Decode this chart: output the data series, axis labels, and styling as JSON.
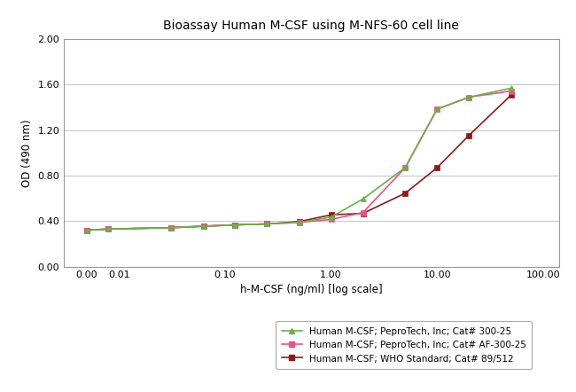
{
  "title": "Bioassay Human M-CSF using M-NFS-60 cell line",
  "xlabel": "h-M-CSF (ng/ml) [log scale]",
  "ylabel": "OD (490 nm)",
  "ylim": [
    0.0,
    2.0
  ],
  "yticks": [
    0.0,
    0.4,
    0.8,
    1.2,
    1.6,
    2.0
  ],
  "major_xtick_pos": [
    0.005,
    0.01,
    0.1,
    1.0,
    10.0,
    100.0
  ],
  "major_xtick_labels": [
    "0.00",
    "0.01",
    "0.10",
    "1.00",
    "10.00",
    "100.00"
  ],
  "xlim": [
    0.003,
    140
  ],
  "series1": {
    "label": "Human M-CSF; PeproTech, Inc; Cat# 300-25",
    "color": "#6ab04c",
    "marker": "^",
    "markersize": 5,
    "x": [
      0.005,
      0.008,
      0.031,
      0.063,
      0.125,
      0.25,
      0.5,
      1.0,
      2.0,
      5.0,
      10.0,
      20.0,
      50.0
    ],
    "y": [
      0.32,
      0.33,
      0.342,
      0.355,
      0.367,
      0.375,
      0.388,
      0.435,
      0.595,
      0.87,
      1.385,
      1.49,
      1.57
    ]
  },
  "series2": {
    "label": "Human M-CSF; PeproTech, Inc; Cat# AF-300-25",
    "color": "#e75480",
    "marker": "s",
    "markersize": 4,
    "x": [
      0.005,
      0.008,
      0.031,
      0.063,
      0.125,
      0.25,
      0.5,
      1.0,
      2.0,
      5.0,
      10.0,
      20.0,
      50.0
    ],
    "y": [
      0.32,
      0.33,
      0.342,
      0.355,
      0.367,
      0.375,
      0.388,
      0.415,
      0.475,
      0.87,
      1.385,
      1.49,
      1.545
    ]
  },
  "series3": {
    "label": "Human M-CSF; WHO Standard; Cat# 89/512",
    "color": "#8B1a1a",
    "marker": "s",
    "markersize": 4,
    "x": [
      0.005,
      0.008,
      0.031,
      0.063,
      0.125,
      0.25,
      0.5,
      1.0,
      2.0,
      5.0,
      10.0,
      20.0,
      50.0
    ],
    "y": [
      0.32,
      0.33,
      0.342,
      0.355,
      0.367,
      0.375,
      0.395,
      0.455,
      0.468,
      0.645,
      0.87,
      1.155,
      1.51
    ]
  },
  "bg_color": "#ffffff",
  "plot_bg_color": "#ffffff",
  "grid_color": "#c8c8c8",
  "title_fontsize": 10,
  "axis_fontsize": 8.5,
  "tick_fontsize": 8,
  "legend_fontsize": 7.5,
  "spine_color": "#999999"
}
